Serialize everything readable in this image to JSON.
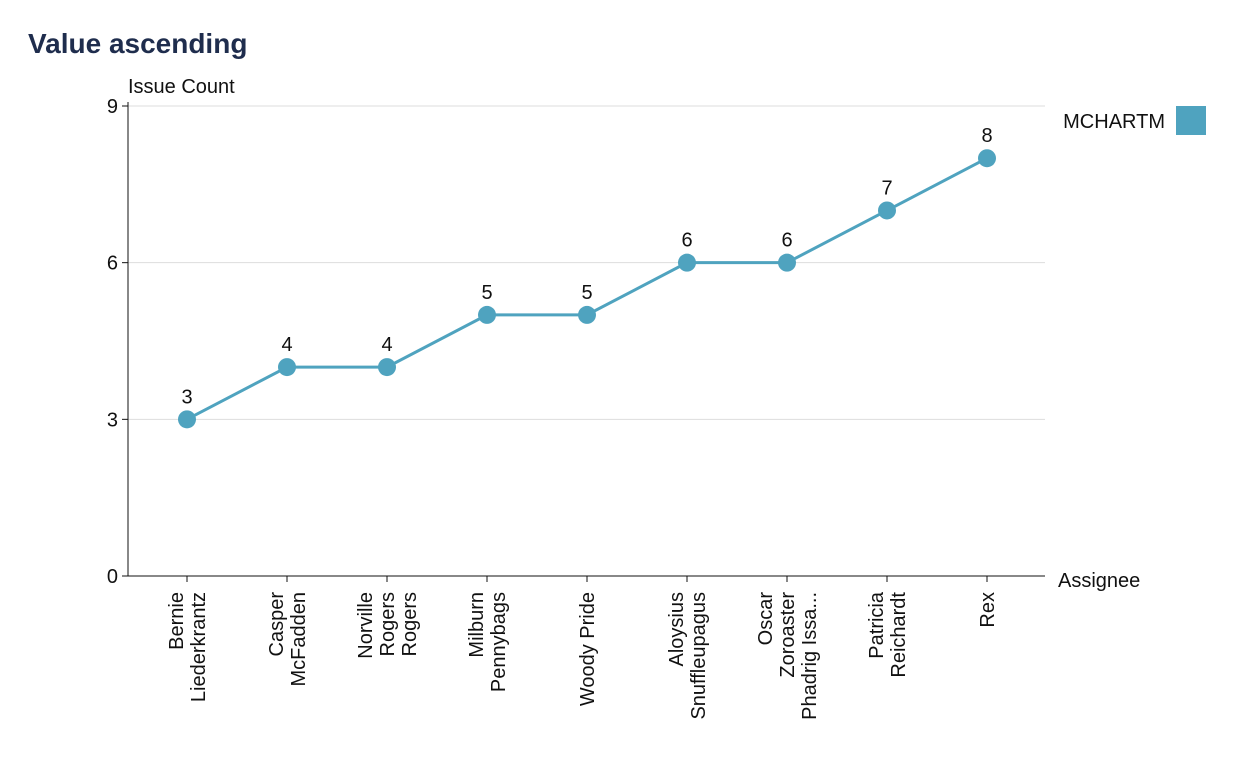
{
  "chart_data": {
    "type": "line",
    "title": "Value ascending",
    "y_label": "Issue Count",
    "x_label": "Assignee",
    "categories": [
      [
        "Bernie",
        "Liederkrantz"
      ],
      [
        "Casper",
        "McFadden"
      ],
      [
        "Norville",
        "Rogers",
        "Rogers"
      ],
      [
        "Milburn",
        "Pennybags"
      ],
      [
        "Woody Pride"
      ],
      [
        "Aloysius",
        "Snuffleupagus"
      ],
      [
        "Oscar",
        "Zoroaster",
        "Phadrig Issa..."
      ],
      [
        "Patricia",
        "Reichardt"
      ],
      [
        "Rex"
      ]
    ],
    "series": [
      {
        "name": "MCHARTM",
        "color": "#4fa3bf",
        "values": [
          3,
          4,
          4,
          5,
          5,
          6,
          6,
          7,
          8
        ]
      }
    ],
    "ylim": [
      0,
      9
    ],
    "yticks": [
      0,
      3,
      6,
      9
    ],
    "grid": true,
    "legend": "top-right"
  }
}
